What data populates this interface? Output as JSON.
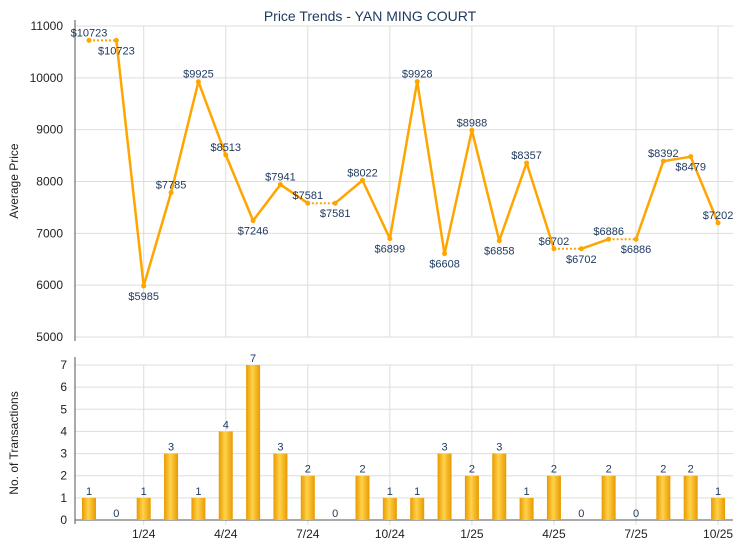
{
  "chart_data": [
    {
      "type": "line",
      "title": "Price Trends - YAN MING COURT",
      "ylabel": "Average Price",
      "ylim": [
        5000,
        11000
      ],
      "yticks": [
        "5000",
        "6000",
        "7000",
        "8000",
        "9000",
        "10000",
        "11000"
      ],
      "months": [
        "11/23",
        "12/23",
        "1/24",
        "2/24",
        "3/24",
        "4/24",
        "5/24",
        "6/24",
        "7/24",
        "8/24",
        "9/24",
        "10/24",
        "11/24",
        "12/24",
        "1/25",
        "2/25",
        "3/25",
        "4/25",
        "5/25",
        "6/25",
        "7/25",
        "8/25",
        "9/25",
        "10/25"
      ],
      "values": [
        10723,
        10723,
        5985,
        7785,
        9925,
        8513,
        7246,
        7941,
        7581,
        7581,
        8022,
        6899,
        9928,
        6608,
        8988,
        6858,
        8357,
        6702,
        6702,
        6886,
        6886,
        8392,
        8479,
        7202
      ],
      "labels": [
        "$10723",
        "$10723",
        "$5985",
        "$7785",
        "$9925",
        "$8513",
        "$7246",
        "$7941",
        "$7581",
        "$7581",
        "$8022",
        "$6899",
        "$9928",
        "$6608",
        "$8988",
        "$6858",
        "$8357",
        "$6702",
        "$6702",
        "$6886",
        "$6886",
        "$8392",
        "$8479",
        "$7202"
      ],
      "color": "#FFA500",
      "label_color": "#1F3A60",
      "grid": true
    },
    {
      "type": "bar",
      "ylabel": "No. of Transactions",
      "ylim": [
        0,
        7
      ],
      "yticks": [
        "0",
        "1",
        "2",
        "3",
        "4",
        "5",
        "6",
        "7"
      ],
      "xticks": [
        {
          "index": 2,
          "label": "1/24"
        },
        {
          "index": 5,
          "label": "4/24"
        },
        {
          "index": 8,
          "label": "7/24"
        },
        {
          "index": 11,
          "label": "10/24"
        },
        {
          "index": 14,
          "label": "1/25"
        },
        {
          "index": 17,
          "label": "4/25"
        },
        {
          "index": 20,
          "label": "7/25"
        },
        {
          "index": 23,
          "label": "10/25"
        }
      ],
      "values": [
        1,
        0,
        1,
        3,
        1,
        4,
        7,
        3,
        2,
        0,
        2,
        1,
        1,
        3,
        2,
        3,
        1,
        2,
        0,
        2,
        0,
        2,
        2,
        1
      ],
      "labels": [
        "1",
        "0",
        "1",
        "3",
        "1",
        "4",
        "7",
        "3",
        "2",
        "0",
        "2",
        "1",
        "1",
        "3",
        "2",
        "3",
        "1",
        "2",
        "0",
        "2",
        "0",
        "2",
        "2",
        "1"
      ],
      "color": "#F5A800"
    }
  ]
}
